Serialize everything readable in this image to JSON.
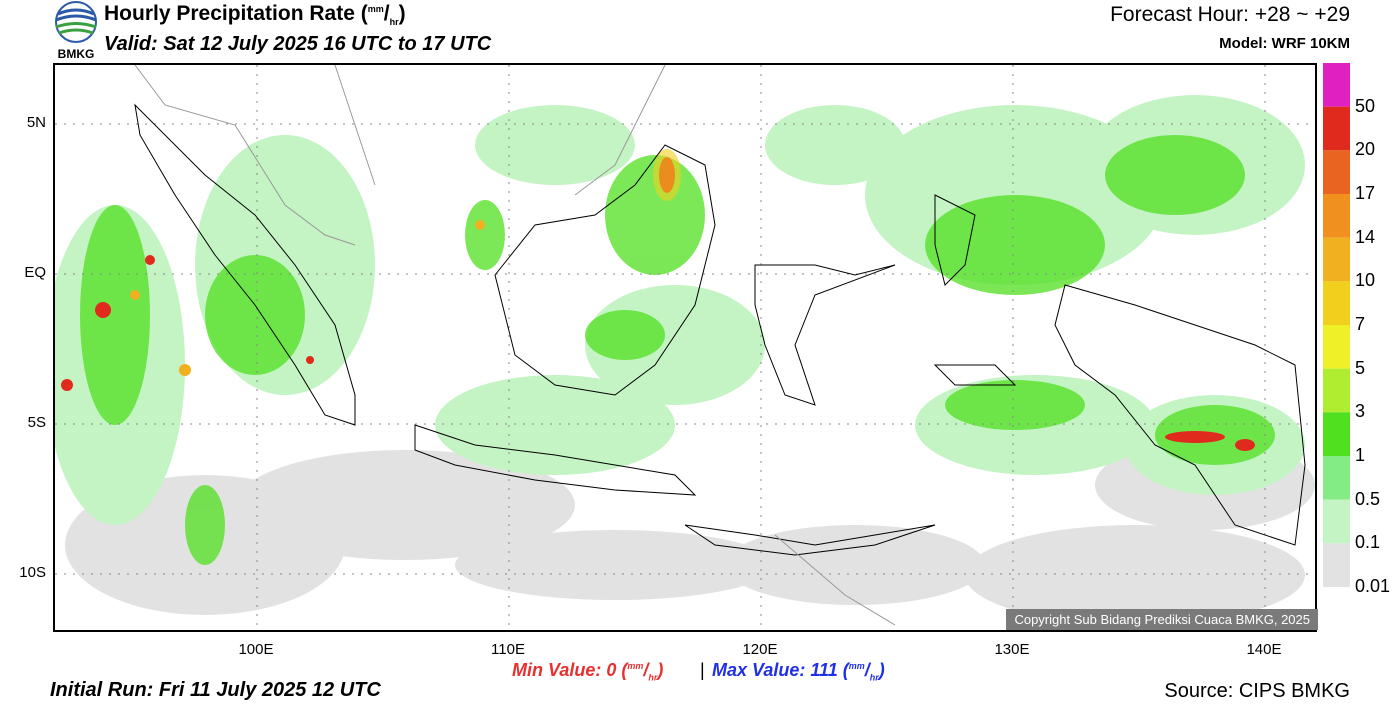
{
  "header": {
    "logo_text": "BMKG",
    "title_main": "Hourly Precipitation Rate (",
    "title_unit_sup": "mm",
    "title_unit_sep": "/",
    "title_unit_sub": "hr",
    "title_close": ")",
    "valid": "Valid: Sat 12 July 2025 16 UTC to 17 UTC",
    "forecast_hour": "Forecast Hour: +28 ~ +29",
    "model": "Model: WRF 10KM"
  },
  "map": {
    "lat_labels": [
      "5N",
      "EQ",
      "5S",
      "10S"
    ],
    "lon_labels": [
      "100E",
      "110E",
      "120E",
      "130E",
      "140E"
    ],
    "copyright": "Copyright Sub Bidang Prediksi Cuaca BMKG, 2025",
    "extent": {
      "lon_min": 92,
      "lon_max": 142,
      "lat_min": -12,
      "lat_max": 7
    }
  },
  "colorbar": {
    "labels": [
      "50",
      "20",
      "17",
      "14",
      "10",
      "7",
      "5",
      "3",
      "1",
      "0.5",
      "0.1",
      "0.01"
    ],
    "colors": [
      "#e020c0",
      "#e02a1e",
      "#e86420",
      "#f0901e",
      "#f0b020",
      "#f0d01c",
      "#f0f028",
      "#b0ec30",
      "#50e020",
      "#84ec84",
      "#c4f4c4",
      "#e2e2e2"
    ]
  },
  "stats": {
    "min_label": "Min Value:",
    "min_value": "0",
    "max_label": "Max Value: 111",
    "sep": "|",
    "unit_sup": "mm",
    "unit_slash": "/",
    "unit_sub": "hr",
    "min_color": "#e83030",
    "max_color": "#2030e8"
  },
  "footer": {
    "initial_run": "Initial Run: Fri 11 July 2025 12 UTC",
    "source": "Source: CIPS BMKG"
  }
}
